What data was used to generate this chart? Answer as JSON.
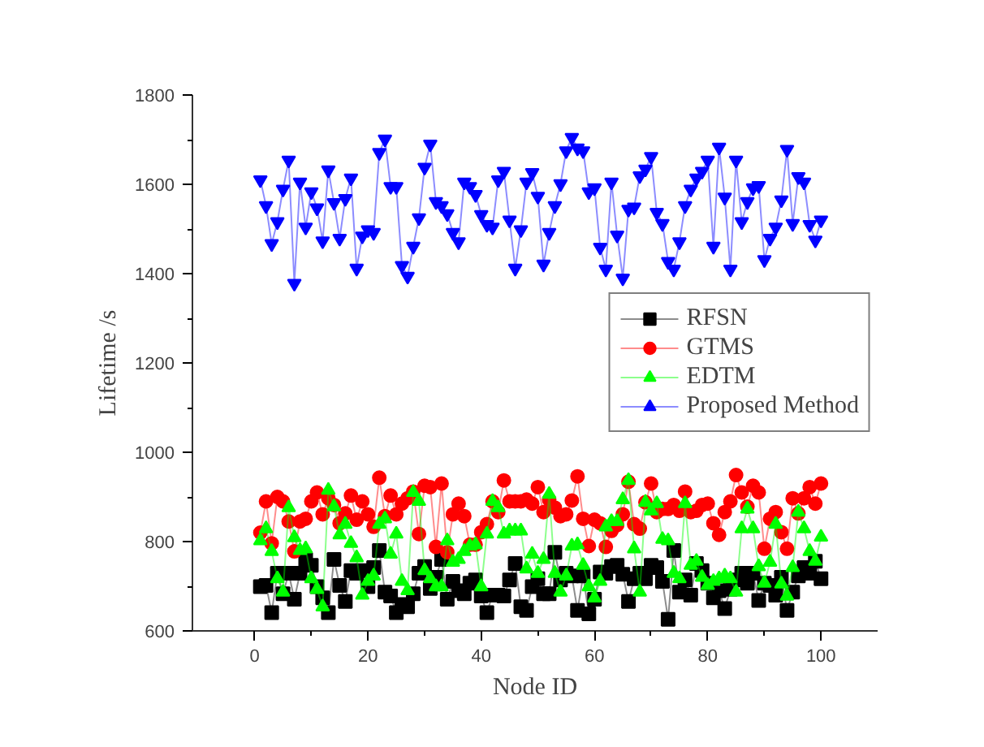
{
  "chart_data": {
    "type": "line",
    "xlabel": "Node ID",
    "ylabel": "Lifetime /s",
    "x": [
      1,
      2,
      3,
      4,
      5,
      6,
      7,
      8,
      9,
      10,
      11,
      12,
      13,
      14,
      15,
      16,
      17,
      18,
      19,
      20,
      21,
      22,
      23,
      24,
      25,
      26,
      27,
      28,
      29,
      30,
      31,
      32,
      33,
      34,
      35,
      36,
      37,
      38,
      39,
      40,
      41,
      42,
      43,
      44,
      45,
      46,
      47,
      48,
      49,
      50,
      51,
      52,
      53,
      54,
      55,
      56,
      57,
      58,
      59,
      60,
      61,
      62,
      63,
      64,
      65,
      66,
      67,
      68,
      69,
      70,
      71,
      72,
      73,
      74,
      75,
      76,
      77,
      78,
      79,
      80,
      81,
      82,
      83,
      84,
      85,
      86,
      87,
      88,
      89,
      90,
      91,
      92,
      93,
      94,
      95,
      96,
      97,
      98,
      99,
      100
    ],
    "xlim": [
      -11,
      110
    ],
    "xticks": [
      0,
      20,
      40,
      60,
      80,
      100
    ],
    "ylim": [
      600,
      1800
    ],
    "yticks": [
      600,
      800,
      1000,
      1200,
      1400,
      1600,
      1800
    ],
    "grid": false,
    "legend": "right",
    "line_style": "solid",
    "series": [
      {
        "name": "RFSN",
        "color": "#000000",
        "marker": "square",
        "values": [
          699,
          702,
          641,
          729,
          683,
          729,
          671,
          729,
          760,
          747,
          699,
          674,
          641,
          760,
          702,
          666,
          735,
          729,
          735,
          699,
          742,
          780,
          687,
          678,
          641,
          659,
          654,
          683,
          729,
          744,
          695,
          720,
          760,
          671,
          711,
          690,
          683,
          707,
          714,
          678,
          641,
          680,
          680,
          678,
          714,
          751,
          654,
          646,
          699,
          717,
          683,
          683,
          776,
          714,
          729,
          723,
          646,
          723,
          638,
          671,
          732,
          729,
          744,
          747,
          727,
          666,
          717,
          729,
          717,
          747,
          742,
          711,
          626,
          780,
          687,
          714,
          680,
          751,
          735,
          707,
          674,
          690,
          650,
          693,
          714,
          729,
          707,
          729,
          668,
          707,
          702,
          680,
          720,
          646,
          687,
          723,
          742,
          729,
          756,
          717
        ]
      },
      {
        "name": "GTMS",
        "color": "#ff0000",
        "marker": "circle",
        "values": [
          820,
          890,
          796,
          900,
          890,
          845,
          778,
          845,
          851,
          890,
          910,
          861,
          897,
          882,
          841,
          863,
          903,
          849,
          890,
          861,
          833,
          943,
          857,
          903,
          861,
          885,
          897,
          912,
          817,
          925,
          922,
          788,
          930,
          776,
          861,
          885,
          857,
          793,
          793,
          821,
          839,
          890,
          866,
          937,
          890,
          890,
          890,
          894,
          885,
          922,
          866,
          894,
          876,
          857,
          861,
          892,
          946,
          851,
          790,
          849,
          841,
          788,
          824,
          837,
          861,
          934,
          839,
          829,
          888,
          930,
          866,
          873,
          873,
          882,
          869,
          912,
          866,
          869,
          882,
          885,
          841,
          815,
          866,
          890,
          949,
          910,
          878,
          925,
          910,
          784,
          851,
          866,
          821,
          784,
          897,
          863,
          897,
          922,
          885,
          930
        ]
      },
      {
        "name": "EDTM",
        "color": "#00ff00",
        "marker": "triangle",
        "values": [
          802,
          829,
          778,
          717,
          687,
          876,
          809,
          780,
          784,
          717,
          693,
          654,
          915,
          878,
          815,
          839,
          796,
          764,
          680,
          711,
          723,
          839,
          851,
          772,
          817,
          711,
          690,
          910,
          890,
          735,
          717,
          699,
          699,
          802,
          754,
          760,
          778,
          790,
          793,
          699,
          817,
          890,
          876,
          817,
          824,
          824,
          824,
          739,
          772,
          729,
          760,
          906,
          729,
          687,
          723,
          790,
          793,
          747,
          699,
          674,
          711,
          833,
          845,
          845,
          894,
          937,
          784,
          687,
          888,
          869,
          885,
          805,
          802,
          729,
          717,
          885,
          747,
          756,
          720,
          702,
          711,
          717,
          723,
          717,
          687,
          829,
          873,
          829,
          744,
          707,
          754,
          839,
          705,
          678,
          742,
          866,
          829,
          778,
          756,
          810
        ]
      },
      {
        "name": "Proposed Method",
        "color": "#0000ff",
        "marker": "triangle",
        "values": [
          1610,
          1552,
          1467,
          1516,
          1589,
          1654,
          1378,
          1605,
          1504,
          1583,
          1547,
          1473,
          1632,
          1559,
          1479,
          1568,
          1614,
          1412,
          1484,
          1498,
          1492,
          1671,
          1701,
          1595,
          1595,
          1418,
          1394,
          1461,
          1525,
          1638,
          1690,
          1561,
          1552,
          1534,
          1492,
          1471,
          1605,
          1595,
          1577,
          1532,
          1510,
          1504,
          1610,
          1629,
          1520,
          1412,
          1498,
          1605,
          1626,
          1573,
          1421,
          1492,
          1552,
          1601,
          1675,
          1705,
          1681,
          1675,
          1583,
          1592,
          1459,
          1410,
          1605,
          1486,
          1390,
          1544,
          1549,
          1619,
          1634,
          1662,
          1537,
          1512,
          1427,
          1410,
          1471,
          1552,
          1589,
          1614,
          1629,
          1654,
          1461,
          1683,
          1571,
          1410,
          1654,
          1516,
          1561,
          1592,
          1597,
          1431,
          1479,
          1504,
          1565,
          1678,
          1512,
          1617,
          1605,
          1510,
          1475,
          1520
        ]
      }
    ]
  }
}
